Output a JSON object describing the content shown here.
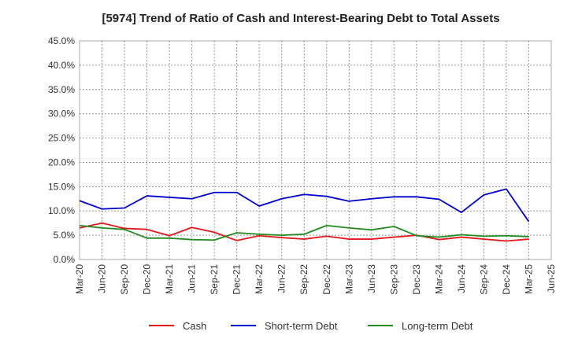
{
  "chart_data": {
    "type": "line",
    "title": "[5974]  Trend of Ratio of Cash and Interest-Bearing Debt to Total Assets",
    "xlabel": "",
    "ylabel": "",
    "ylim": [
      0,
      45
    ],
    "y_ticks": [
      "0.0%",
      "5.0%",
      "10.0%",
      "15.0%",
      "20.0%",
      "25.0%",
      "30.0%",
      "35.0%",
      "40.0%",
      "45.0%"
    ],
    "x_ticks": [
      "Mar-20",
      "Jun-20",
      "Sep-20",
      "Dec-20",
      "Mar-21",
      "Jun-21",
      "Sep-21",
      "Dec-21",
      "Mar-22",
      "Jun-22",
      "Sep-22",
      "Dec-22",
      "Mar-23",
      "Jun-23",
      "Sep-23",
      "Dec-23",
      "Mar-24",
      "Jun-24",
      "Sep-24",
      "Dec-24",
      "Mar-25",
      "Jun-25"
    ],
    "x": [
      "Mar-20",
      "Jun-20",
      "Sep-20",
      "Dec-20",
      "Mar-21",
      "Jun-21",
      "Sep-21",
      "Dec-21",
      "Mar-22",
      "Jun-22",
      "Sep-22",
      "Dec-22",
      "Mar-23",
      "Jun-23",
      "Sep-23",
      "Dec-23",
      "Mar-24",
      "Jun-24",
      "Sep-24",
      "Dec-24",
      "Mar-25"
    ],
    "grid": true,
    "legend_position": "bottom",
    "series": [
      {
        "name": "Cash",
        "color": "#e31a1c",
        "values": [
          6.5,
          7.5,
          6.4,
          6.2,
          4.9,
          6.6,
          5.6,
          3.9,
          4.9,
          4.5,
          4.2,
          4.8,
          4.2,
          4.2,
          4.6,
          5.0,
          4.1,
          4.6,
          4.2,
          3.8,
          4.2
        ]
      },
      {
        "name": "Short-term Debt",
        "color": "#0000cc",
        "values": [
          12.1,
          10.4,
          10.6,
          13.1,
          12.8,
          12.5,
          13.8,
          13.8,
          11.0,
          12.5,
          13.4,
          13.0,
          12.0,
          12.5,
          12.9,
          12.9,
          12.4,
          9.7,
          13.3,
          14.5,
          7.8
        ]
      },
      {
        "name": "Long-term Debt",
        "color": "#228b22",
        "values": [
          7.0,
          6.5,
          6.2,
          4.4,
          4.4,
          4.1,
          4.0,
          5.5,
          5.2,
          5.0,
          5.2,
          7.0,
          6.5,
          6.1,
          6.8,
          4.9,
          4.6,
          5.1,
          4.8,
          4.9,
          4.7
        ]
      }
    ]
  }
}
